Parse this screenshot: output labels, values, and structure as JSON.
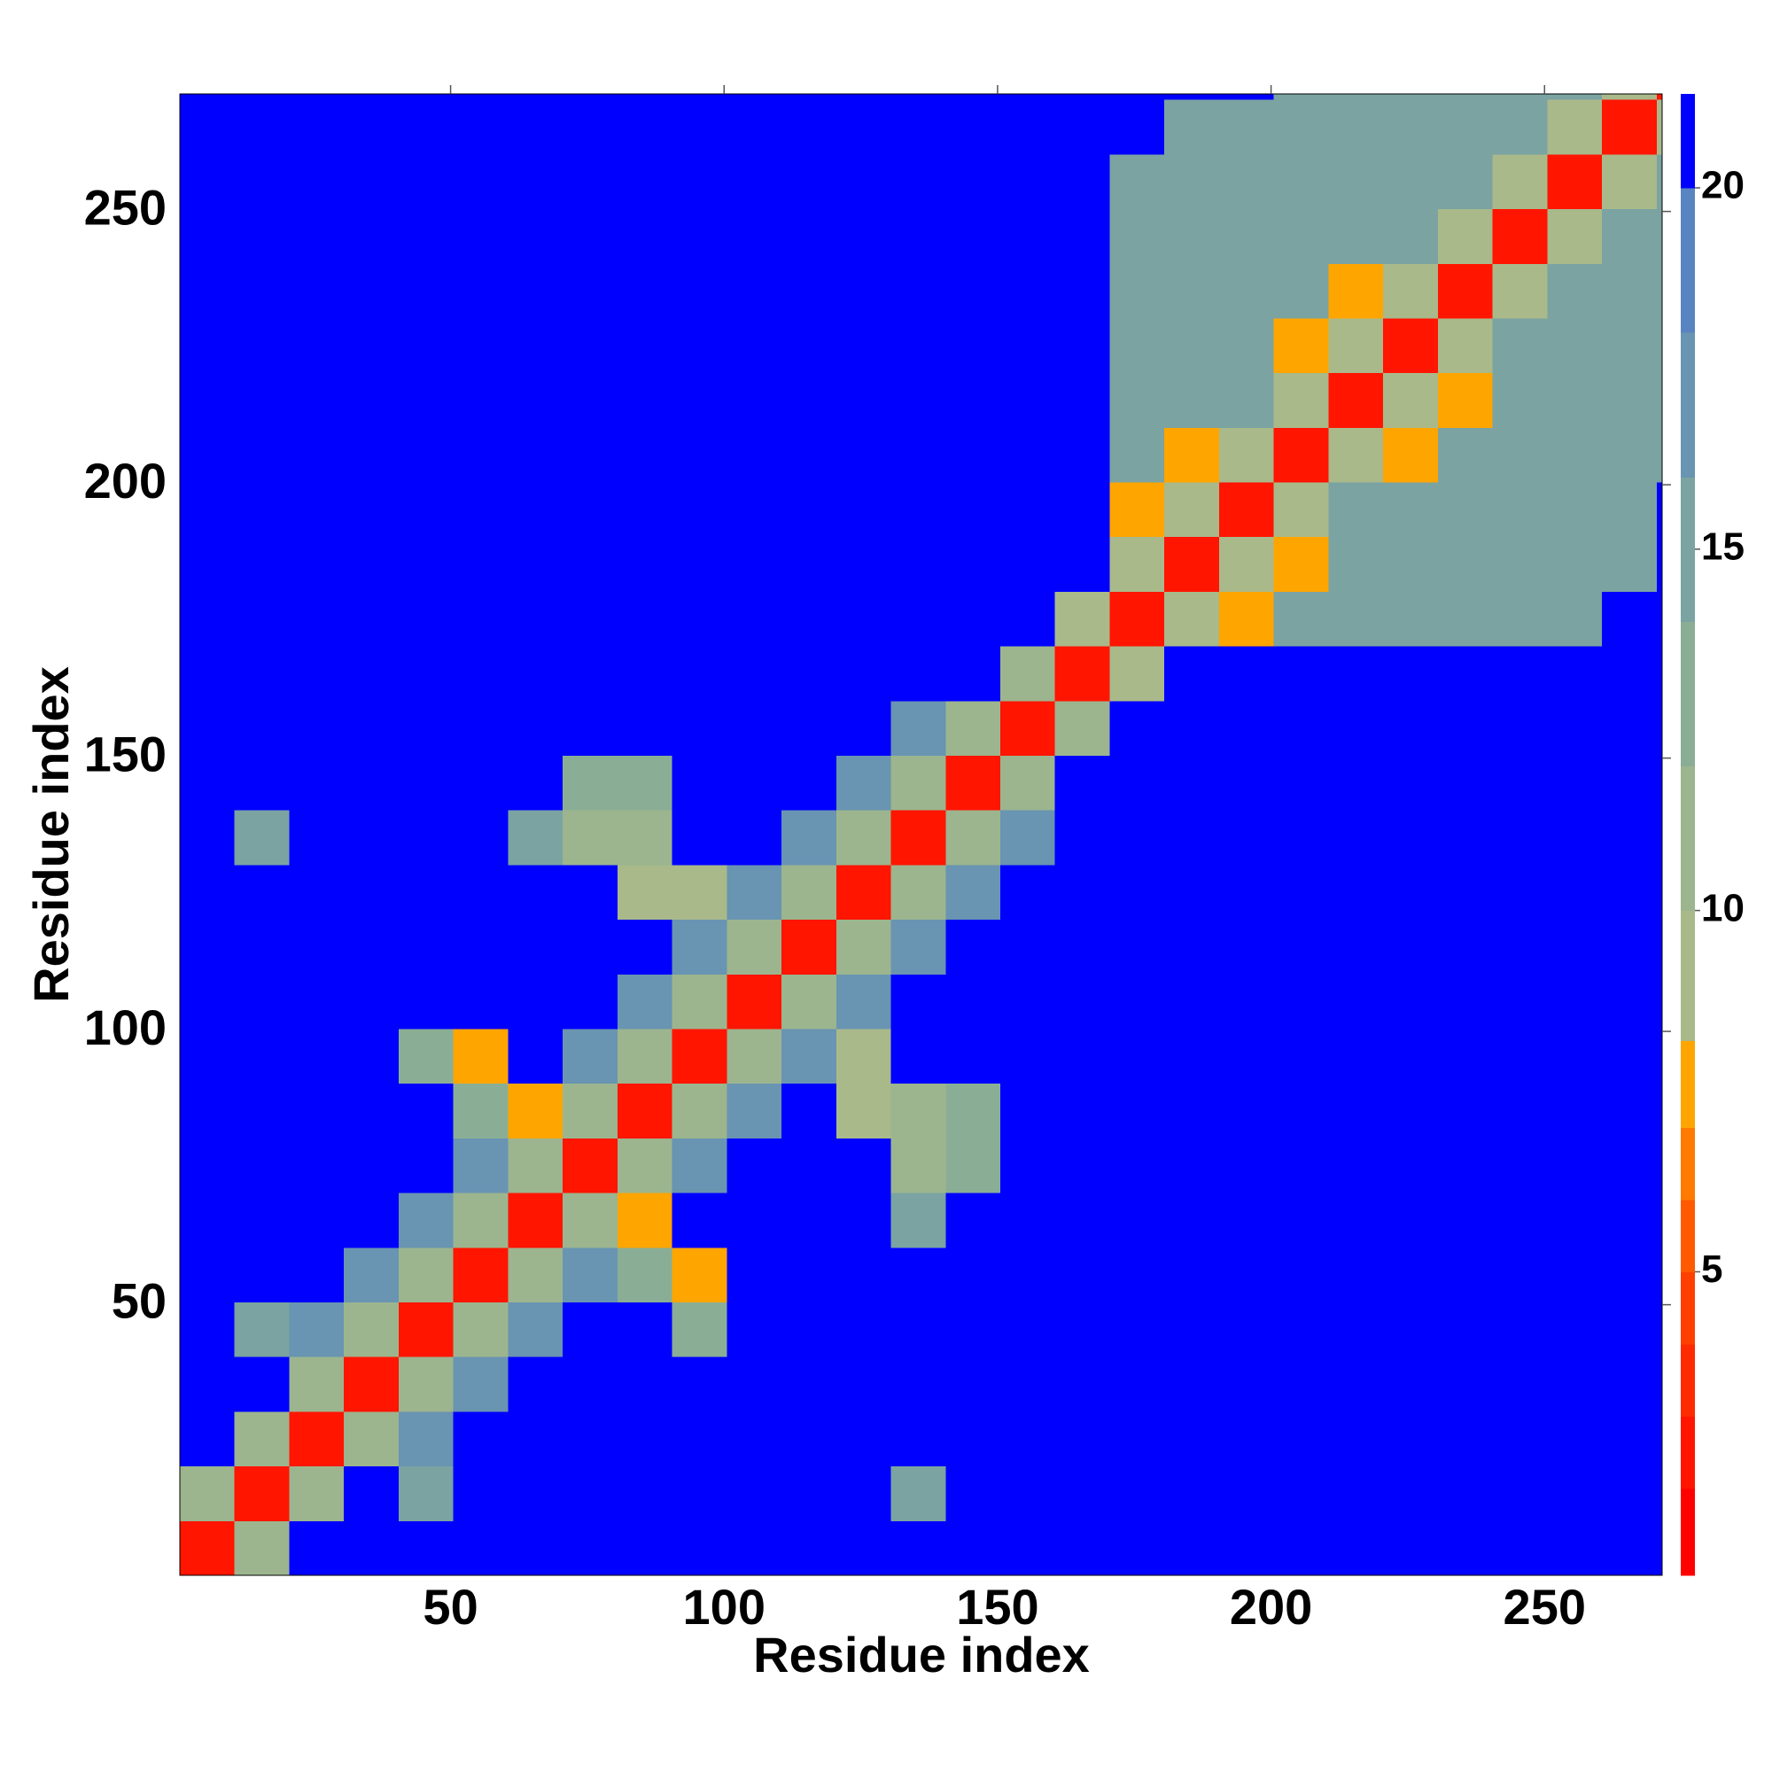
{
  "chart_data": {
    "type": "heatmap",
    "xlabel": "Residue index",
    "ylabel": "Residue index",
    "xlim": [
      0.5,
      271.5
    ],
    "ylim": [
      0.5,
      271.5
    ],
    "xticks": [
      50,
      100,
      150,
      200,
      250
    ],
    "yticks": [
      50,
      100,
      150,
      200,
      250
    ],
    "x_edges": [
      0.5,
      10.5,
      20.5,
      30.5,
      40.5,
      50.5,
      60.5,
      70.5,
      80.5,
      90.5,
      100.5,
      110.5,
      120.5,
      130.5,
      140.5,
      150.5,
      160.5,
      170.5,
      180.5,
      190.5,
      200.5,
      210.5,
      220.5,
      230.5,
      240.5,
      250.5,
      260.5,
      270.5,
      271.5
    ],
    "y_edges": [
      0.5,
      10.5,
      20.5,
      30.5,
      40.5,
      50.5,
      60.5,
      70.5,
      80.5,
      90.5,
      100.5,
      110.5,
      120.5,
      130.5,
      140.5,
      150.5,
      160.5,
      170.5,
      180.5,
      190.5,
      200.5,
      210.5,
      220.5,
      230.5,
      240.5,
      250.5,
      260.5,
      270.5,
      271.5
    ],
    "z": [
      [
        2,
        10,
        21,
        21,
        21,
        21,
        21,
        21,
        21,
        21,
        21,
        21,
        21,
        21,
        21,
        21,
        21,
        21,
        21,
        21,
        21,
        21,
        21,
        21,
        21,
        21,
        21,
        21
      ],
      [
        10,
        2,
        10,
        21,
        14,
        21,
        21,
        21,
        21,
        21,
        21,
        21,
        21,
        14,
        21,
        21,
        21,
        21,
        21,
        21,
        21,
        21,
        21,
        21,
        21,
        21,
        21,
        21
      ],
      [
        21,
        10,
        2,
        10,
        17,
        21,
        21,
        21,
        21,
        21,
        21,
        21,
        21,
        21,
        21,
        21,
        21,
        21,
        21,
        21,
        21,
        21,
        21,
        21,
        21,
        21,
        21,
        21
      ],
      [
        21,
        21,
        10,
        2,
        10,
        17,
        21,
        21,
        21,
        21,
        21,
        21,
        21,
        21,
        21,
        21,
        21,
        21,
        21,
        21,
        21,
        21,
        21,
        21,
        21,
        21,
        21,
        21
      ],
      [
        21,
        14,
        17,
        10,
        2,
        10,
        17,
        21,
        21,
        12,
        21,
        21,
        21,
        21,
        21,
        21,
        21,
        21,
        21,
        21,
        21,
        21,
        21,
        21,
        21,
        21,
        21,
        21
      ],
      [
        21,
        21,
        21,
        17,
        10,
        2,
        10,
        17,
        12,
        8,
        21,
        21,
        21,
        21,
        21,
        21,
        21,
        21,
        21,
        21,
        21,
        21,
        21,
        21,
        21,
        21,
        21,
        21
      ],
      [
        21,
        21,
        21,
        21,
        17,
        10,
        2,
        10,
        8,
        21,
        21,
        21,
        21,
        14,
        21,
        21,
        21,
        21,
        21,
        21,
        21,
        21,
        21,
        21,
        21,
        21,
        21,
        21
      ],
      [
        21,
        21,
        21,
        21,
        21,
        17,
        10,
        2,
        10,
        17,
        21,
        21,
        21,
        10,
        12,
        21,
        21,
        21,
        21,
        21,
        21,
        21,
        21,
        21,
        21,
        21,
        21,
        21
      ],
      [
        21,
        21,
        21,
        21,
        21,
        12,
        8,
        10,
        2,
        10,
        17,
        21,
        9,
        10,
        12,
        21,
        21,
        21,
        21,
        21,
        21,
        21,
        21,
        21,
        21,
        21,
        21,
        21
      ],
      [
        21,
        21,
        21,
        21,
        12,
        8,
        21,
        17,
        10,
        2,
        10,
        17,
        9,
        21,
        21,
        21,
        21,
        21,
        21,
        21,
        21,
        21,
        21,
        21,
        21,
        21,
        21,
        21
      ],
      [
        21,
        21,
        21,
        21,
        21,
        21,
        21,
        21,
        17,
        10,
        2,
        10,
        17,
        21,
        21,
        21,
        21,
        21,
        21,
        21,
        21,
        21,
        21,
        21,
        21,
        21,
        21,
        21
      ],
      [
        21,
        21,
        21,
        21,
        21,
        21,
        21,
        21,
        21,
        17,
        10,
        2,
        10,
        17,
        21,
        21,
        21,
        21,
        21,
        21,
        21,
        21,
        21,
        21,
        21,
        21,
        21,
        21
      ],
      [
        21,
        21,
        21,
        21,
        21,
        21,
        21,
        21,
        9,
        9,
        17,
        10,
        2,
        10,
        17,
        21,
        21,
        21,
        21,
        21,
        21,
        21,
        21,
        21,
        21,
        21,
        21,
        21
      ],
      [
        21,
        14,
        21,
        21,
        21,
        21,
        14,
        10,
        10,
        21,
        21,
        17,
        10,
        2,
        10,
        17,
        21,
        21,
        21,
        21,
        21,
        21,
        21,
        21,
        21,
        21,
        21,
        21
      ],
      [
        21,
        21,
        21,
        21,
        21,
        21,
        21,
        12,
        12,
        21,
        21,
        21,
        17,
        10,
        2,
        10,
        21,
        21,
        21,
        21,
        21,
        21,
        21,
        21,
        21,
        21,
        21,
        21
      ],
      [
        21,
        21,
        21,
        21,
        21,
        21,
        21,
        21,
        21,
        21,
        21,
        21,
        21,
        17,
        10,
        2,
        10,
        21,
        21,
        21,
        21,
        21,
        21,
        21,
        21,
        21,
        21,
        21
      ],
      [
        21,
        21,
        21,
        21,
        21,
        21,
        21,
        21,
        21,
        21,
        21,
        21,
        21,
        21,
        21,
        10,
        2,
        9,
        21,
        21,
        21,
        21,
        21,
        21,
        21,
        21,
        21,
        21
      ],
      [
        21,
        21,
        21,
        21,
        21,
        21,
        21,
        21,
        21,
        21,
        21,
        21,
        21,
        21,
        21,
        21,
        9,
        2,
        9,
        8,
        14,
        14,
        14,
        14,
        14,
        14,
        21,
        21
      ],
      [
        21,
        21,
        21,
        21,
        21,
        21,
        21,
        21,
        21,
        21,
        21,
        21,
        21,
        21,
        21,
        21,
        21,
        9,
        2,
        9,
        8,
        14,
        14,
        14,
        14,
        14,
        14,
        21
      ],
      [
        21,
        21,
        21,
        21,
        21,
        21,
        21,
        21,
        21,
        21,
        21,
        21,
        21,
        21,
        21,
        21,
        21,
        8,
        9,
        2,
        9,
        14,
        14,
        14,
        14,
        14,
        14,
        21
      ],
      [
        21,
        21,
        21,
        21,
        21,
        21,
        21,
        21,
        21,
        21,
        21,
        21,
        21,
        21,
        21,
        21,
        21,
        14,
        8,
        9,
        2,
        9,
        7,
        14,
        14,
        14,
        14,
        14
      ],
      [
        21,
        21,
        21,
        21,
        21,
        21,
        21,
        21,
        21,
        21,
        21,
        21,
        21,
        21,
        21,
        21,
        21,
        14,
        14,
        14,
        9,
        2,
        9,
        7,
        14,
        14,
        14,
        14
      ],
      [
        21,
        21,
        21,
        21,
        21,
        21,
        21,
        21,
        21,
        21,
        21,
        21,
        21,
        21,
        21,
        21,
        21,
        14,
        14,
        14,
        7,
        9,
        2,
        9,
        14,
        14,
        14,
        14
      ],
      [
        21,
        21,
        21,
        21,
        21,
        21,
        21,
        21,
        21,
        21,
        21,
        21,
        21,
        21,
        21,
        21,
        21,
        14,
        14,
        14,
        14,
        7,
        9,
        2,
        9,
        14,
        14,
        14
      ],
      [
        21,
        21,
        21,
        21,
        21,
        21,
        21,
        21,
        21,
        21,
        21,
        21,
        21,
        21,
        21,
        21,
        21,
        14,
        14,
        14,
        14,
        14,
        14,
        9,
        2,
        9,
        14,
        14
      ],
      [
        21,
        21,
        21,
        21,
        21,
        21,
        21,
        21,
        21,
        21,
        21,
        21,
        21,
        21,
        21,
        21,
        21,
        14,
        14,
        14,
        14,
        14,
        14,
        14,
        9,
        2,
        9,
        14
      ],
      [
        21,
        21,
        21,
        21,
        21,
        21,
        21,
        21,
        21,
        21,
        21,
        21,
        21,
        21,
        21,
        21,
        21,
        21,
        14,
        14,
        14,
        14,
        14,
        14,
        14,
        9,
        2,
        9
      ],
      [
        21,
        21,
        21,
        21,
        21,
        21,
        21,
        21,
        21,
        21,
        21,
        21,
        21,
        21,
        21,
        21,
        21,
        21,
        21,
        21,
        14,
        14,
        14,
        14,
        14,
        14,
        9,
        2
      ]
    ],
    "colorbar": {
      "lim": [
        0.8,
        21.3
      ],
      "ticks": [
        5,
        10,
        15,
        20
      ],
      "levels": [
        0.8,
        2,
        3,
        4,
        5,
        6,
        7,
        8.2,
        10,
        12,
        14,
        16,
        18,
        20,
        21.3
      ],
      "colors": [
        "#ff0000",
        "#ff1500",
        "#ff2b00",
        "#ff4000",
        "#ff5a00",
        "#ff7a00",
        "#ffa500",
        "#a9b98a",
        "#9cb58e",
        "#8aae95",
        "#7aa3a2",
        "#6994b2",
        "#5884c2",
        "#0000ff"
      ]
    }
  }
}
